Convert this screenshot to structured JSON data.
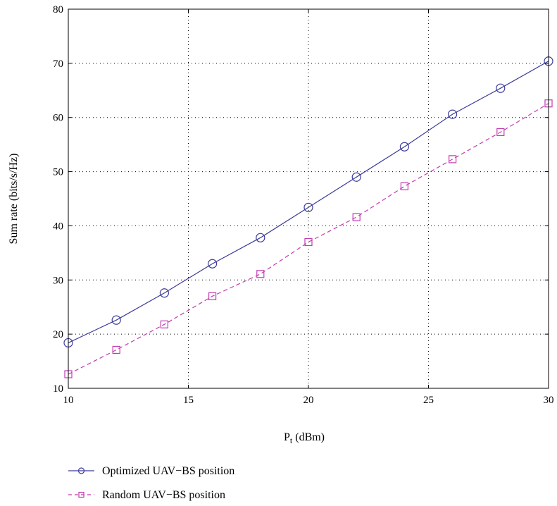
{
  "chart_data": {
    "type": "line",
    "title": "",
    "xlabel": "P",
    "xlabel_sub": "t",
    "xlabel_unit": " (dBm)",
    "ylabel": "Sum rate (bits/s/Hz)",
    "xlim": [
      10,
      30
    ],
    "ylim": [
      10,
      80
    ],
    "xticks": [
      10,
      15,
      20,
      25,
      30
    ],
    "yticks": [
      10,
      20,
      30,
      40,
      50,
      60,
      70,
      80
    ],
    "grid": true,
    "grid_style": "dotted",
    "legend_position": "bottom-left, below plot",
    "x": [
      10,
      12,
      14,
      16,
      18,
      20,
      22,
      24,
      26,
      28,
      30
    ],
    "series": [
      {
        "name": "Optimized UAV−BS position",
        "color": "#3b3b9a",
        "line_style": "solid",
        "marker": "circle",
        "values": [
          18.4,
          22.6,
          27.6,
          33.0,
          37.8,
          43.4,
          49.0,
          54.6,
          60.6,
          65.4,
          70.4
        ]
      },
      {
        "name": "Random UAV−BS position",
        "color": "#c23ab0",
        "line_style": "dashed",
        "marker": "square",
        "values": [
          12.6,
          17.1,
          21.8,
          27.0,
          31.1,
          37.0,
          41.6,
          47.3,
          52.3,
          57.3,
          62.6
        ]
      }
    ]
  }
}
